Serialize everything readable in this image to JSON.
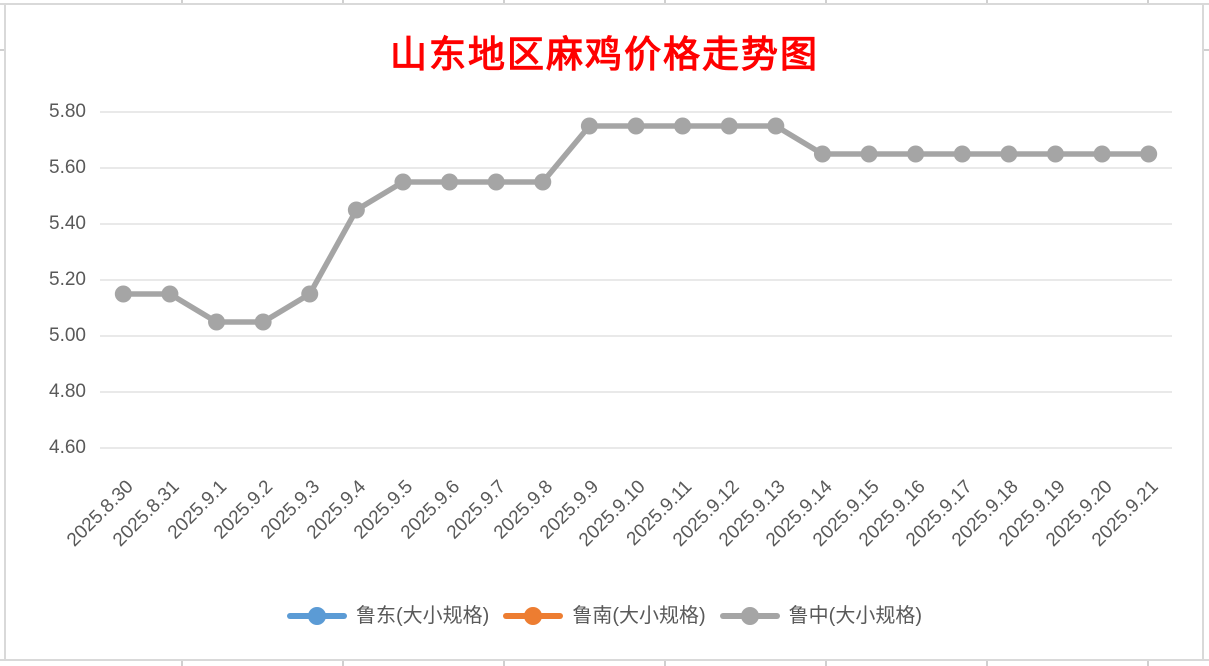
{
  "colors": {
    "background": "#FFFFFF",
    "frame_border": "#D9D9D9",
    "sheet_tick": "#D0D0D0",
    "gridline": "#E2E2E2",
    "axis_label": "#595959",
    "legend_label": "#595959",
    "title": "#FF0000"
  },
  "chart_data": {
    "type": "line",
    "title": "山东地区麻鸡价格走势图",
    "xlabel": "",
    "ylabel": "",
    "grid": true,
    "legend_position": "bottom",
    "ylim": [
      4.6,
      5.8
    ],
    "ytick_step": 0.2,
    "ytick_labels": [
      "5.80",
      "5.60",
      "5.40",
      "5.20",
      "5.00",
      "4.80",
      "4.60"
    ],
    "categories": [
      "2025.8.30",
      "2025.8.31",
      "2025.9.1",
      "2025.9.2",
      "2025.9.3",
      "2025.9.4",
      "2025.9.5",
      "2025.9.6",
      "2025.9.7",
      "2025.9.8",
      "2025.9.9",
      "2025.9.10",
      "2025.9.11",
      "2025.9.12",
      "2025.9.13",
      "2025.9.14",
      "2025.9.15",
      "2025.9.16",
      "2025.9.17",
      "2025.9.18",
      "2025.9.19",
      "2025.9.20",
      "2025.9.21"
    ],
    "series": [
      {
        "name": "鲁东(大小规格)",
        "color": "#5B9BD5",
        "line_visible_in_plot": false,
        "values": []
      },
      {
        "name": "鲁南(大小规格)",
        "color": "#ED7D31",
        "line_visible_in_plot": false,
        "values": []
      },
      {
        "name": "鲁中(大小规格)",
        "color": "#A5A5A5",
        "line_visible_in_plot": true,
        "values": [
          5.15,
          5.15,
          5.05,
          5.05,
          5.15,
          5.45,
          5.55,
          5.55,
          5.55,
          5.55,
          5.75,
          5.75,
          5.75,
          5.75,
          5.75,
          5.65,
          5.65,
          5.65,
          5.65,
          5.65,
          5.65,
          5.65,
          5.65
        ]
      }
    ]
  }
}
